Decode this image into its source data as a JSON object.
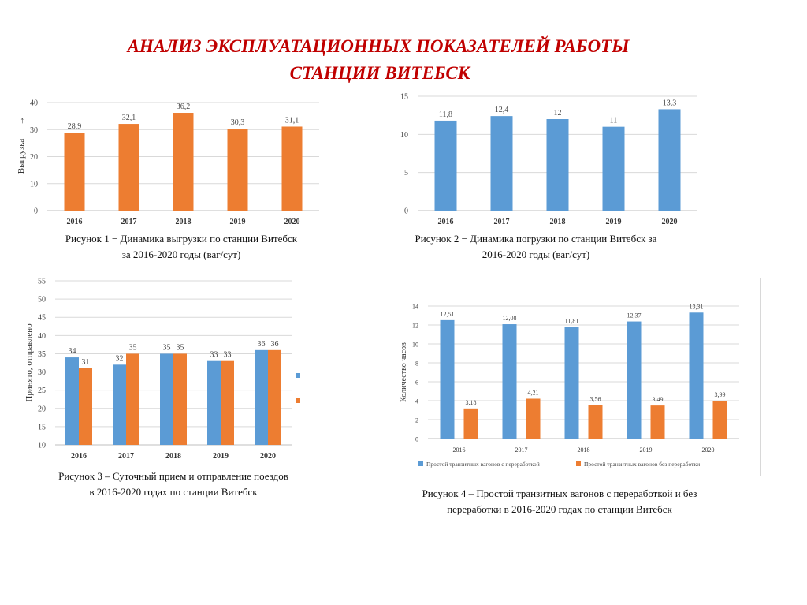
{
  "page": {
    "title_line1": "АНАЛИЗ ЭКСПЛУАТАЦИОННЫХ ПОКАЗАТЕЛЕЙ РАБОТЫ",
    "title_line2": "СТАНЦИИ ВИТЕБСК",
    "title_color": "#c00000"
  },
  "captions": {
    "fig1_line1": "Рисунок 1 − Динамика выгрузки по станции Витебск",
    "fig1_line2": "за 2016-2020 годы (ваг/сут)",
    "fig2_line1": "Рисунок 2 − Динамика погрузки по станции Витебск за",
    "fig2_line2": "2016-2020 годы (ваг/сут)",
    "fig3_line1": "Рисунок 3 – Суточный прием и отправление поездов",
    "fig3_line2": "в 2016-2020 годах по станции  Витебск",
    "fig4_line1": "Рисунок 4 – Простой транзитных вагонов с переработкой и без",
    "fig4_line2": "переработки в 2016-2020 годах по станции  Витебск"
  },
  "chart_data": [
    {
      "type": "bar",
      "title": "",
      "categories": [
        "2016",
        "2017",
        "2018",
        "2019",
        "2020"
      ],
      "values": [
        28.9,
        32.1,
        36.2,
        30.3,
        31.1
      ],
      "labels": [
        "28,9",
        "32,1",
        "36,2",
        "30,3",
        "31,1"
      ],
      "yticks": [
        0,
        10,
        20,
        30,
        40
      ],
      "ylim": [
        0,
        40
      ],
      "ylabel": "Выгрузка",
      "ylabel_arrow": "→",
      "xlabel": "",
      "color": "#ed7d31",
      "grid": true
    },
    {
      "type": "bar",
      "title": "",
      "categories": [
        "2016",
        "2017",
        "2018",
        "2019",
        "2020"
      ],
      "values": [
        11.8,
        12.4,
        12,
        11,
        13.3
      ],
      "labels": [
        "11,8",
        "12,4",
        "12",
        "11",
        "13,3"
      ],
      "yticks": [
        0,
        5,
        10,
        15
      ],
      "ylim": [
        0,
        15
      ],
      "ylabel": "",
      "xlabel": "",
      "color": "#5b9bd5",
      "grid": true
    },
    {
      "type": "bar",
      "title": "",
      "categories": [
        "2016",
        "2017",
        "2018",
        "2019",
        "2020"
      ],
      "series": [
        {
          "name": "",
          "values": [
            34,
            32,
            35,
            33,
            36
          ],
          "labels": [
            "34",
            "32",
            "35",
            "33",
            "36"
          ],
          "color": "#5b9bd5"
        },
        {
          "name": "",
          "values": [
            31,
            35,
            35,
            33,
            36
          ],
          "labels": [
            "31",
            "35",
            "35",
            "33",
            "36"
          ],
          "color": "#ed7d31"
        }
      ],
      "yticks": [
        10,
        15,
        20,
        25,
        30,
        35,
        40,
        45,
        50,
        55
      ],
      "ylim": [
        10,
        55
      ],
      "ylabel": "Принято, отправлено",
      "xlabel": "",
      "grid": true
    },
    {
      "type": "bar",
      "title": "",
      "categories": [
        "2016",
        "2017",
        "2018",
        "2019",
        "2020"
      ],
      "series": [
        {
          "name": "Простой транзитных вагонов с переработкой",
          "values": [
            12.51,
            12.08,
            11.81,
            12.37,
            13.31
          ],
          "labels": [
            "12,51",
            "12,08",
            "11,81",
            "12,37",
            "13,31"
          ],
          "color": "#5b9bd5"
        },
        {
          "name": "Простой транзитных вагонов без переработки",
          "values": [
            3.18,
            4.21,
            3.56,
            3.49,
            3.99
          ],
          "labels": [
            "3,18",
            "4,21",
            "3,56",
            "3,49",
            "3,99"
          ],
          "color": "#ed7d31"
        }
      ],
      "yticks": [
        0,
        2,
        4,
        6,
        8,
        10,
        12,
        14
      ],
      "ylim": [
        0,
        14
      ],
      "ylabel": "Количество часов",
      "xlabel": "",
      "legend": "bottom",
      "grid": true
    }
  ]
}
